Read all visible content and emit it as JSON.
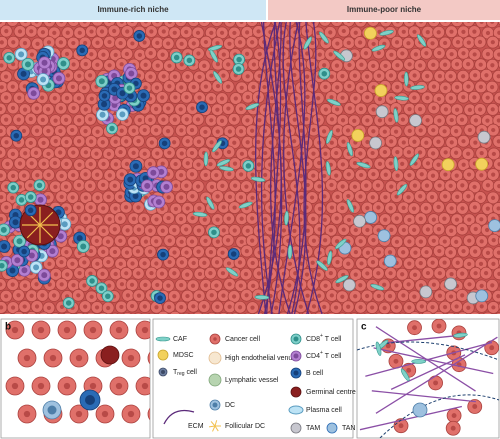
{
  "header": {
    "left": "Immune-rich niche",
    "right": "Immune-poor niche"
  },
  "panels": {
    "b": "b",
    "c": "c"
  },
  "legend": [
    {
      "label": "CAF"
    },
    {
      "label": "MDSC"
    },
    {
      "main": "T",
      "sub": "reg",
      "rest": " cell"
    },
    {
      "label": "ECM"
    },
    {
      "label": "Cancer cell"
    },
    {
      "label": "High endothelial venule"
    },
    {
      "label": "Lymphatic vessel"
    },
    {
      "label": "DC"
    },
    {
      "label": "Follicular DC"
    },
    {
      "main": "CD8",
      "sup": "+",
      "rest": " T cell"
    },
    {
      "main": "CD4",
      "sup": "+",
      "rest": " T cell"
    },
    {
      "label": "B cell"
    },
    {
      "label": "Germinal centre B cell"
    },
    {
      "label": "Plasma cell"
    },
    {
      "label": "TAM"
    },
    {
      "label": "TAN"
    }
  ]
}
